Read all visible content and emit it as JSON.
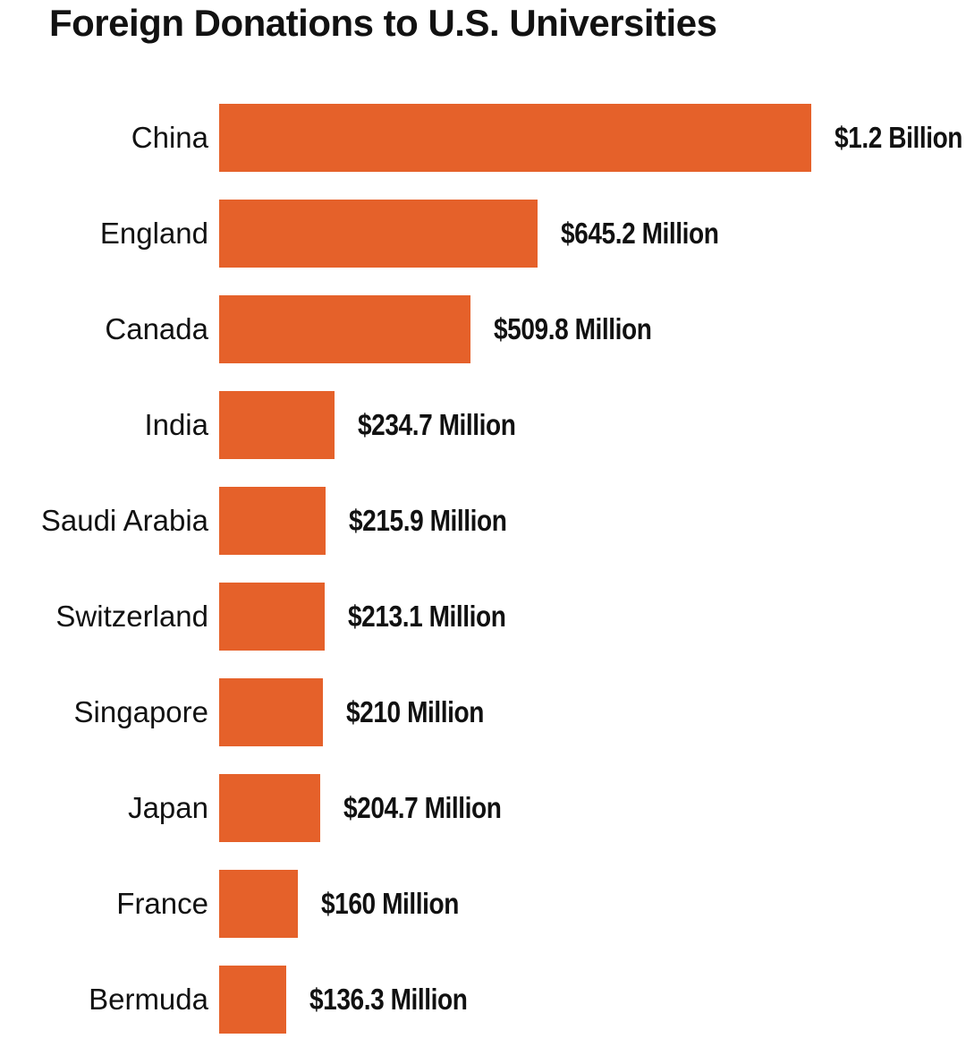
{
  "colors": {
    "bar": "#E5612A",
    "text": "#121212",
    "background": "#FFFFFF"
  },
  "chart_data": {
    "type": "bar",
    "orientation": "horizontal",
    "title": "Foreign Donations to U.S. Universities",
    "categories": [
      "China",
      "England",
      "Canada",
      "India",
      "Saudi Arabia",
      "Switzerland",
      "Singapore",
      "Japan",
      "France",
      "Bermuda"
    ],
    "values_millions_usd": [
      1200,
      645.2,
      509.8,
      234.7,
      215.9,
      213.1,
      210,
      204.7,
      160,
      136.3
    ],
    "value_labels": [
      "$1.2 Billion",
      "$645.2 Million",
      "$509.8 Million",
      "$234.7 Million",
      "$215.9 Million",
      "$213.1 Million",
      "$210 Million",
      "$204.7 Million",
      "$160 Million",
      "$136.3 Million"
    ],
    "xlabel": "",
    "ylabel": "",
    "xlim": [
      0,
      1200
    ],
    "grid": false,
    "legend": false,
    "value_label_position": "right-of-bar",
    "category_label_position": "left-of-bar"
  }
}
